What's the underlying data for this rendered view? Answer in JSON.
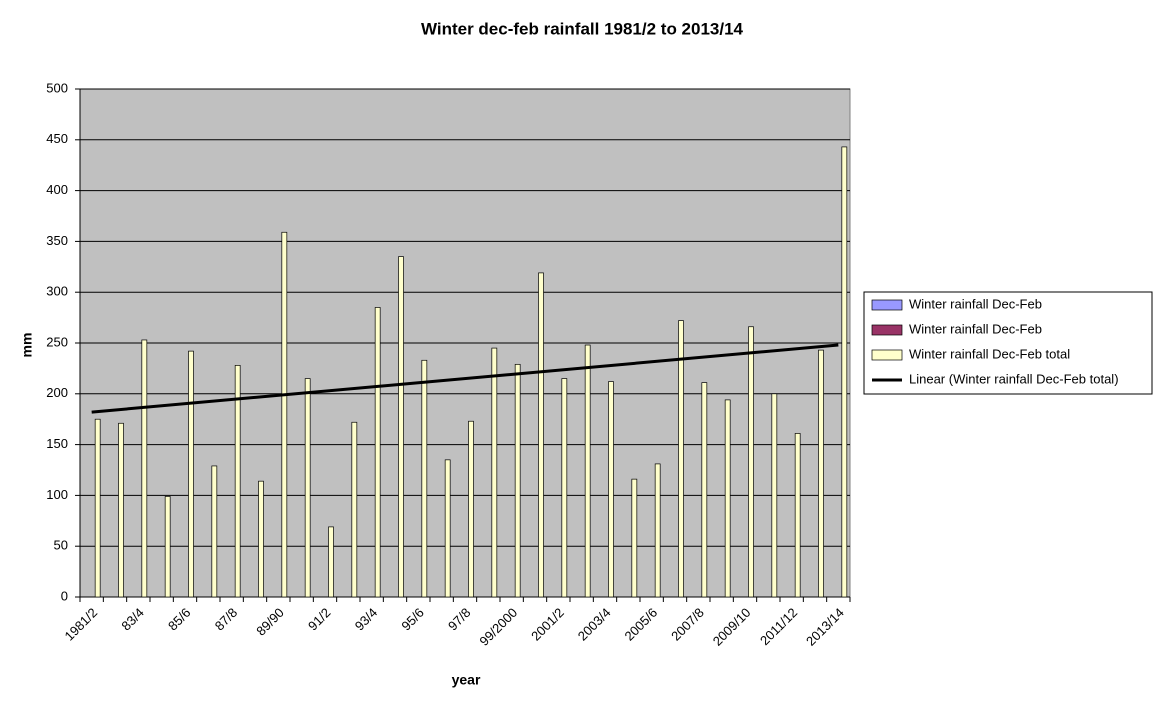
{
  "chart_data": {
    "type": "bar",
    "title": "Winter dec-feb rainfall 1981/2 to 2013/14",
    "xlabel": "year",
    "ylabel": "mm",
    "categories": [
      "1981/2",
      null,
      "83/4",
      null,
      "85/6",
      null,
      "87/8",
      null,
      "89/90",
      null,
      "91/2",
      null,
      "93/4",
      null,
      "95/6",
      null,
      "97/8",
      null,
      "99/2000",
      null,
      "2001/2",
      null,
      "2003/4",
      null,
      "2005/6",
      null,
      "2007/8",
      null,
      "2009/10",
      null,
      "2011/12",
      null,
      "2013/14"
    ],
    "series": [
      {
        "name": "Winter rainfall Dec-Feb",
        "color": "#9999ff",
        "values": [
          null,
          null,
          null,
          null,
          null,
          null,
          null,
          null,
          null,
          null,
          null,
          null,
          null,
          null,
          null,
          null,
          null,
          null,
          null,
          null,
          null,
          null,
          null,
          null,
          null,
          null,
          null,
          null,
          null,
          null,
          null,
          null,
          null
        ]
      },
      {
        "name": "Winter rainfall Dec-Feb",
        "color": "#993366",
        "values": [
          null,
          null,
          null,
          null,
          null,
          null,
          null,
          null,
          null,
          null,
          null,
          null,
          null,
          null,
          null,
          null,
          null,
          null,
          null,
          null,
          null,
          null,
          null,
          null,
          null,
          null,
          null,
          null,
          null,
          null,
          null,
          null,
          null
        ]
      },
      {
        "name": "Winter rainfall Dec-Feb total",
        "color": "#ffffcc",
        "values": [
          175,
          171,
          253,
          99,
          242,
          129,
          228,
          114,
          359,
          215,
          69,
          172,
          285,
          335,
          233,
          135,
          173,
          245,
          229,
          319,
          215,
          248,
          212,
          116,
          131,
          272,
          211,
          194,
          266,
          200,
          161,
          243,
          443
        ]
      }
    ],
    "trendline": {
      "name": "Linear (Winter rainfall Dec-Feb total)",
      "color": "#000000",
      "start": 182,
      "end": 248
    },
    "ylim": [
      0,
      500
    ],
    "yticks": [
      0,
      50,
      100,
      150,
      200,
      250,
      300,
      350,
      400,
      450,
      500
    ],
    "grid": true
  }
}
